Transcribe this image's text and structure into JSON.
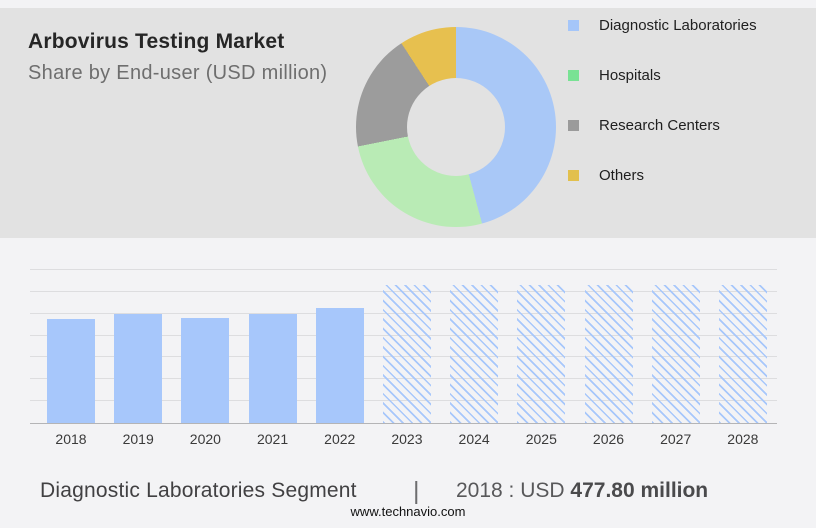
{
  "header": {
    "title": "Arbovirus Testing Market",
    "subtitle": "Share by End-user (USD million)"
  },
  "legend": {
    "items": [
      {
        "label": "Diagnostic Laboratories",
        "color": "#a5c6f9"
      },
      {
        "label": "Hospitals",
        "color": "#79e294"
      },
      {
        "label": "Research Centers",
        "color": "#9b9b9b"
      },
      {
        "label": "Others",
        "color": "#e2c04d"
      }
    ]
  },
  "chart_data": [
    {
      "type": "pie",
      "subtype": "donut",
      "title": "Share by End-user (USD million)",
      "labels": [
        "Diagnostic Laboratories",
        "Hospitals",
        "Research Centers",
        "Others"
      ],
      "values_percent": [
        45.8,
        26.1,
        18.9,
        9.2
      ],
      "colors": [
        "#a9c8f7",
        "#b9ebb5",
        "#9c9c9c",
        "#e7c04f"
      ],
      "start_angle_deg": 0,
      "donut_hole_ratio": 0.49,
      "legend_position": "right"
    },
    {
      "type": "bar",
      "categories": [
        "2018",
        "2019",
        "2020",
        "2021",
        "2022",
        "2023",
        "2024",
        "2025",
        "2026",
        "2027",
        "2028"
      ],
      "values": [
        477.8,
        500,
        482,
        500,
        524,
        630,
        630,
        630,
        630,
        630,
        630
      ],
      "styles": [
        "solid",
        "solid",
        "solid",
        "solid",
        "solid",
        "hatched",
        "hatched",
        "hatched",
        "hatched",
        "hatched",
        "hatched"
      ],
      "hatched_meaning": "forecast years",
      "bar_color": "#a7c7fb",
      "title": "",
      "xlabel": "",
      "ylabel": "",
      "ylim": [
        0,
        700
      ],
      "gridline_step": 100,
      "grid": true,
      "y_axis_labels_shown": false
    }
  ],
  "footnote": {
    "segment_label": "Diagnostic Laboratories Segment",
    "separator": "|",
    "year_prefix": "2018 : USD",
    "value": "477.80 million"
  },
  "footer": {
    "url": "www.technavio.com"
  }
}
